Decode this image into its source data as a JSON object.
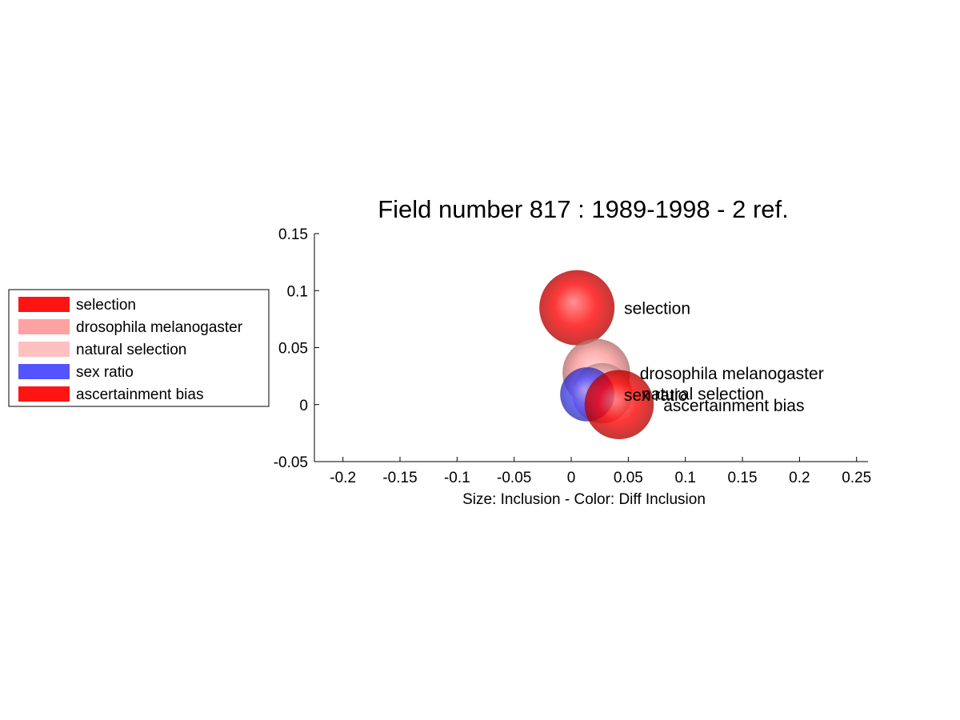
{
  "chart_data": {
    "type": "scatter",
    "title": "Field number 817 : 1989-1998  - 2 ref.",
    "xlabel": "Size: Inclusion - Color: Diff Inclusion",
    "ylabel": "",
    "xlim": [
      -0.225,
      0.26
    ],
    "ylim": [
      -0.05,
      0.15
    ],
    "xticks": [
      -0.2,
      -0.15,
      -0.1,
      -0.05,
      0,
      0.05,
      0.1,
      0.15,
      0.2,
      0.25
    ],
    "xtick_labels": [
      "-0.2",
      "-0.15",
      "-0.1",
      "-0.05",
      "0",
      "0.05",
      "0.1",
      "0.15",
      "0.2",
      "0.25"
    ],
    "yticks": [
      -0.05,
      0,
      0.05,
      0.1,
      0.15
    ],
    "ytick_labels": [
      "-0.05",
      "0",
      "0.05",
      "0.1",
      "0.15"
    ],
    "grid": false,
    "legend_position": "left",
    "points": [
      {
        "label": "selection",
        "x": 0.005,
        "y": 0.085,
        "size": 1.0,
        "color": "#ff0000"
      },
      {
        "label": "drosophila melanogaster",
        "x": 0.022,
        "y": 0.028,
        "size": 0.9,
        "color": "#ff9999"
      },
      {
        "label": "natural selection",
        "x": 0.027,
        "y": 0.01,
        "size": 0.8,
        "color": "#ffbbbb"
      },
      {
        "label": "sex ratio",
        "x": 0.014,
        "y": 0.009,
        "size": 0.72,
        "color": "#4444ff"
      },
      {
        "label": "ascertainment bias",
        "x": 0.042,
        "y": 0.0,
        "size": 0.92,
        "color": "#ff0000"
      }
    ],
    "legend": [
      {
        "label": "selection",
        "color": "#ff0000"
      },
      {
        "label": "drosophila melanogaster",
        "color": "#ff9999"
      },
      {
        "label": "natural selection",
        "color": "#ffbbbb"
      },
      {
        "label": "sex ratio",
        "color": "#4444ff"
      },
      {
        "label": "ascertainment bias",
        "color": "#ff0000"
      }
    ]
  }
}
